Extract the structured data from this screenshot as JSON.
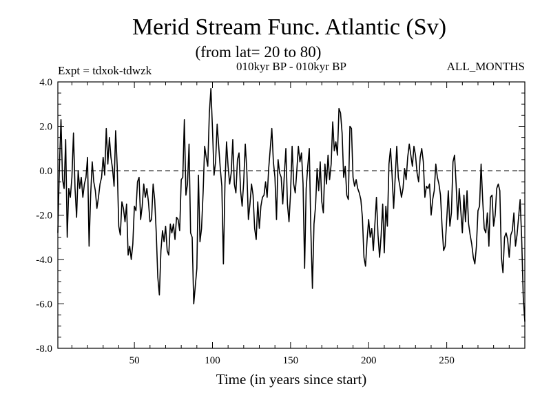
{
  "chart_data": {
    "type": "line",
    "title": "Merid Stream Func. Atlantic (Sv)",
    "subtitle": "(from lat= 20 to 80)",
    "left_label": "Expt = tdxok-tdwzk",
    "center_label": "010kyr BP - 010kyr BP",
    "right_label": "ALL_MONTHS",
    "xlabel": "Time (in years since start)",
    "ylabel": "",
    "xlim": [
      1,
      300
    ],
    "ylim": [
      -8.0,
      4.0
    ],
    "x_ticks": [
      50,
      100,
      150,
      200,
      250
    ],
    "x_tick_labels": [
      "50",
      "100",
      "150",
      "200",
      "250"
    ],
    "y_ticks": [
      -8.0,
      -6.0,
      -4.0,
      -2.0,
      0.0,
      2.0,
      4.0
    ],
    "y_tick_labels": [
      "-8.0",
      "-6.0",
      "-4.0",
      "-2.0",
      "0.0",
      "2.0",
      "4.0"
    ],
    "reference_line": 0.0,
    "grid": false,
    "line_color": "#000000",
    "series": [
      {
        "x_start": 1,
        "x_step": 1,
        "values": [
          -2.8,
          0.2,
          2.3,
          -0.4,
          -0.8,
          1.4,
          -3.0,
          -0.8,
          -1.2,
          -0.3,
          1.7,
          -0.8,
          -2.1,
          0.0,
          -0.8,
          -0.3,
          -1.2,
          -0.6,
          -0.3,
          0.6,
          -3.4,
          -1.1,
          0.4,
          -0.5,
          -0.9,
          -1.7,
          -1.2,
          -0.6,
          -0.3,
          0.6,
          -0.2,
          1.9,
          0.3,
          1.5,
          0.6,
          0.1,
          -0.7,
          1.8,
          0.2,
          -2.5,
          -2.9,
          -1.4,
          -1.7,
          -2.3,
          -1.5,
          -3.8,
          -3.4,
          -4.0,
          -3.3,
          -1.6,
          -1.8,
          -0.5,
          -0.3,
          -2.2,
          -1.6,
          -0.6,
          -1.2,
          -0.8,
          -1.4,
          -2.3,
          -2.2,
          -0.6,
          -1.3,
          -2.8,
          -4.8,
          -5.6,
          -3.6,
          -2.7,
          -3.2,
          -2.5,
          -3.6,
          -3.8,
          -2.4,
          -2.8,
          -2.4,
          -3.1,
          -2.1,
          -2.2,
          -2.7,
          -0.4,
          -0.3,
          2.3,
          -1.1,
          -0.6,
          1.2,
          -2.8,
          -3.0,
          -6.0,
          -5.2,
          -4.4,
          -0.2,
          -3.2,
          -2.6,
          -1.0,
          1.1,
          0.6,
          0.2,
          2.6,
          3.7,
          1.9,
          -0.2,
          0.4,
          2.1,
          1.1,
          0.1,
          -0.7,
          -4.2,
          -0.6,
          1.3,
          0.2,
          -0.6,
          -0.1,
          1.4,
          -0.6,
          -1.0,
          0.5,
          0.8,
          -0.9,
          -1.6,
          -0.5,
          1.2,
          0.0,
          -2.2,
          -1.5,
          -0.6,
          -1.1,
          -2.6,
          -3.1,
          -1.4,
          -2.6,
          -1.6,
          -1.2,
          -1.1,
          -0.5,
          -1.2,
          0.1,
          1.0,
          1.9,
          0.4,
          -0.3,
          -2.2,
          0.5,
          -0.1,
          -0.3,
          -1.5,
          -0.2,
          1.0,
          -1.5,
          -2.3,
          -1.0,
          1.1,
          -0.6,
          -1.0,
          0.0,
          1.1,
          0.4,
          0.8,
          -0.6,
          -4.4,
          -0.8,
          0.2,
          1.0,
          -2.7,
          -5.3,
          -2.4,
          -1.6,
          0.1,
          -0.9,
          0.4,
          -1.4,
          -1.9,
          0.3,
          -0.6,
          0.7,
          -0.4,
          0.3,
          2.2,
          0.9,
          1.3,
          0.7,
          2.8,
          2.6,
          1.7,
          -0.3,
          0.2,
          -1.1,
          -1.3,
          2.0,
          1.9,
          -0.3,
          -0.7,
          -0.4,
          -0.8,
          -1.0,
          -1.3,
          -2.1,
          -3.9,
          -4.3,
          -3.1,
          -2.2,
          -3.0,
          -2.6,
          -3.6,
          -2.4,
          -1.2,
          -2.9,
          -3.9,
          -2.9,
          -1.5,
          -3.7,
          -1.6,
          -2.5,
          0.3,
          1.0,
          -0.2,
          -1.7,
          -0.3,
          1.1,
          -0.3,
          -0.7,
          -1.2,
          -0.8,
          0.1,
          -0.4,
          0.6,
          1.2,
          0.7,
          0.2,
          1.1,
          0.7,
          -0.1,
          -0.5,
          0.6,
          1.0,
          0.4,
          -1.2,
          -0.7,
          -0.8,
          -0.6,
          -2.0,
          -1.3,
          -0.9,
          0.3,
          -0.3,
          -0.6,
          -1.1,
          -2.5,
          -3.6,
          -3.4,
          -2.2,
          -0.9,
          -2.5,
          -1.9,
          0.4,
          0.7,
          -0.6,
          -2.2,
          -0.8,
          -1.8,
          -2.8,
          -1.1,
          -2.3,
          -0.9,
          -2.4,
          -2.9,
          -3.3,
          -3.9,
          -4.2,
          -3.4,
          -1.8,
          -1.6,
          0.3,
          -1.3,
          -2.6,
          -2.8,
          -1.9,
          -3.4,
          -1.2,
          -1.1,
          -2.5,
          -2.0,
          -0.8,
          -0.6,
          -0.9,
          -3.9,
          -4.6,
          -3.0,
          -2.8,
          -3.1,
          -3.9,
          -2.9,
          -2.7,
          -1.9,
          -3.4,
          -2.9,
          -2.1,
          -1.3,
          -3.1,
          -5.7,
          -6.8
        ]
      }
    ]
  }
}
